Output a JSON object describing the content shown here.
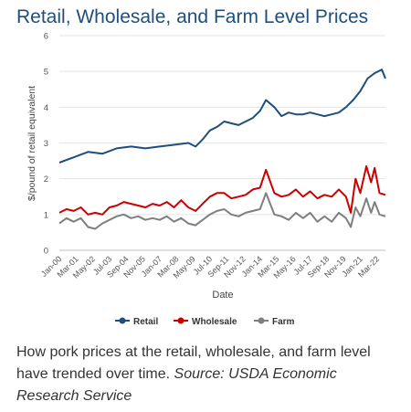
{
  "page": {
    "title": "Retail, Wholesale, and Farm Level Prices"
  },
  "caption": {
    "text": "How pork prices at the retail, wholesale, and farm level have trended over time.",
    "source": "Source: USDA Economic Research Service"
  },
  "chart_data": {
    "type": "line",
    "title": "Retail, Wholesale, and Farm Level Prices",
    "xlabel": "Date",
    "ylabel": "$/pound of retail equivalent",
    "ylim": [
      0,
      6
    ],
    "yticks": [
      0,
      1,
      2,
      3,
      4,
      5,
      6
    ],
    "x_tick_labels": [
      "Jan-00",
      "Mar-01",
      "May-02",
      "Jul-03",
      "Sep-04",
      "Nov-05",
      "Jan-07",
      "Mar-08",
      "May-09",
      "Jul-10",
      "Sep-11",
      "Nov-12",
      "Jan-14",
      "Mar-15",
      "May-16",
      "Jul-17",
      "Sep-18",
      "Nov-19",
      "Jan-21",
      "Mar-22"
    ],
    "grid": "horizontal",
    "legend": "bottom",
    "series": [
      {
        "name": "Retail",
        "color": "#1f4e79",
        "x": [
          "2000-01",
          "2001-01",
          "2002-01",
          "2003-01",
          "2004-01",
          "2005-01",
          "2006-01",
          "2007-01",
          "2008-01",
          "2009-01",
          "2009-07",
          "2010-01",
          "2010-07",
          "2011-01",
          "2011-07",
          "2012-01",
          "2012-07",
          "2013-01",
          "2013-07",
          "2014-01",
          "2014-06",
          "2015-01",
          "2015-07",
          "2016-01",
          "2016-07",
          "2017-01",
          "2017-07",
          "2018-01",
          "2018-07",
          "2019-01",
          "2019-07",
          "2020-01",
          "2020-07",
          "2021-01",
          "2021-07",
          "2022-01",
          "2022-07",
          "2022-10"
        ],
        "values": [
          2.45,
          2.6,
          2.75,
          2.7,
          2.85,
          2.9,
          2.85,
          2.9,
          2.95,
          3.0,
          2.9,
          3.1,
          3.35,
          3.45,
          3.6,
          3.55,
          3.5,
          3.6,
          3.7,
          3.9,
          4.2,
          4.0,
          3.75,
          3.85,
          3.8,
          3.8,
          3.85,
          3.8,
          3.75,
          3.8,
          3.85,
          4.0,
          4.2,
          4.45,
          4.8,
          4.95,
          5.05,
          4.8
        ]
      },
      {
        "name": "Wholesale",
        "color": "#cc0000",
        "x": [
          "2000-01",
          "2000-07",
          "2001-01",
          "2001-07",
          "2002-01",
          "2002-07",
          "2003-01",
          "2003-07",
          "2004-01",
          "2004-07",
          "2005-01",
          "2005-07",
          "2006-01",
          "2006-07",
          "2007-01",
          "2007-07",
          "2008-01",
          "2008-07",
          "2009-01",
          "2009-07",
          "2010-01",
          "2010-07",
          "2011-01",
          "2011-07",
          "2012-01",
          "2012-07",
          "2013-01",
          "2013-07",
          "2014-01",
          "2014-06",
          "2015-01",
          "2015-07",
          "2016-01",
          "2016-07",
          "2017-01",
          "2017-07",
          "2018-01",
          "2018-07",
          "2019-01",
          "2019-07",
          "2020-01",
          "2020-05",
          "2020-09",
          "2021-01",
          "2021-06",
          "2021-10",
          "2022-01",
          "2022-05",
          "2022-10"
        ],
        "values": [
          1.05,
          1.15,
          1.1,
          1.2,
          1.0,
          1.05,
          1.0,
          1.2,
          1.25,
          1.35,
          1.3,
          1.25,
          1.2,
          1.3,
          1.25,
          1.35,
          1.2,
          1.4,
          1.2,
          1.1,
          1.3,
          1.5,
          1.6,
          1.6,
          1.45,
          1.5,
          1.55,
          1.7,
          1.75,
          2.25,
          1.6,
          1.5,
          1.55,
          1.7,
          1.5,
          1.65,
          1.45,
          1.55,
          1.5,
          1.7,
          1.5,
          1.05,
          2.0,
          1.6,
          2.35,
          1.9,
          2.3,
          1.6,
          1.55
        ]
      },
      {
        "name": "Farm",
        "color": "#7f7f7f",
        "x": [
          "2000-01",
          "2000-07",
          "2001-01",
          "2001-07",
          "2002-01",
          "2002-07",
          "2003-01",
          "2003-07",
          "2004-01",
          "2004-07",
          "2005-01",
          "2005-07",
          "2006-01",
          "2006-07",
          "2007-01",
          "2007-07",
          "2008-01",
          "2008-07",
          "2009-01",
          "2009-07",
          "2010-01",
          "2010-07",
          "2011-01",
          "2011-07",
          "2012-01",
          "2012-07",
          "2013-01",
          "2013-07",
          "2014-01",
          "2014-06",
          "2015-01",
          "2015-07",
          "2016-01",
          "2016-07",
          "2017-01",
          "2017-07",
          "2018-01",
          "2018-07",
          "2019-01",
          "2019-07",
          "2020-01",
          "2020-05",
          "2020-09",
          "2021-01",
          "2021-06",
          "2021-10",
          "2022-01",
          "2022-05",
          "2022-10"
        ],
        "values": [
          0.75,
          0.9,
          0.8,
          0.9,
          0.65,
          0.6,
          0.75,
          0.85,
          0.95,
          1.0,
          0.9,
          0.95,
          0.85,
          0.9,
          0.85,
          0.95,
          0.8,
          0.9,
          0.75,
          0.7,
          0.85,
          1.0,
          1.1,
          1.15,
          1.0,
          0.95,
          1.05,
          1.1,
          1.15,
          1.6,
          1.0,
          0.95,
          0.85,
          1.05,
          0.9,
          1.05,
          0.8,
          0.95,
          0.8,
          1.05,
          0.9,
          0.65,
          1.2,
          0.95,
          1.45,
          1.05,
          1.35,
          1.0,
          0.95
        ]
      }
    ]
  }
}
